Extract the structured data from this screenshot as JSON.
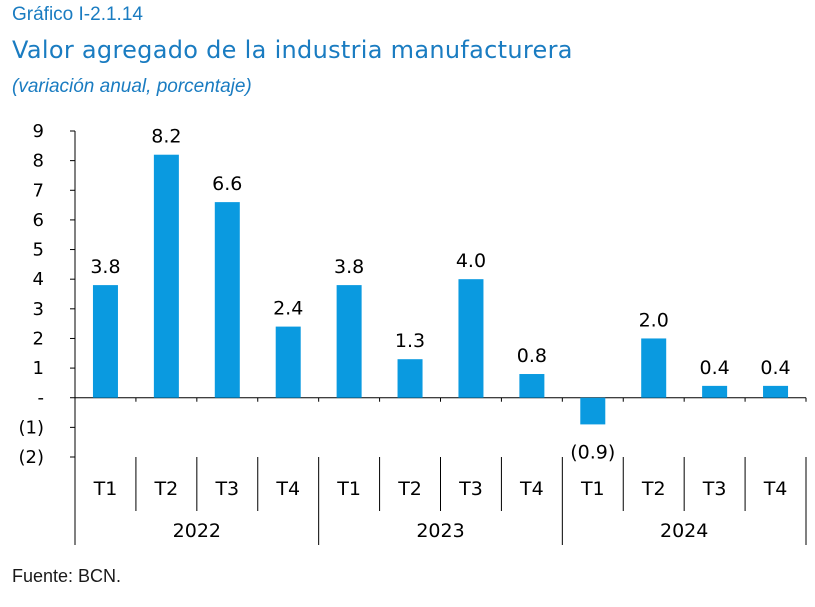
{
  "header": {
    "label": "Gráfico I-2.1.14",
    "title": "Valor agregado de la industria manufacturera",
    "subtitle": "(variación anual, porcentaje)"
  },
  "source": "Fuente: BCN.",
  "colors": {
    "bar": "#0a9ae0",
    "title": "#1a7cc1",
    "axis": "#000000"
  },
  "chart_data": {
    "type": "bar",
    "categories": [
      "T1",
      "T2",
      "T3",
      "T4",
      "T1",
      "T2",
      "T3",
      "T4",
      "T1",
      "T2",
      "T3",
      "T4"
    ],
    "groups": [
      {
        "label": "2022",
        "count": 4
      },
      {
        "label": "2023",
        "count": 4
      },
      {
        "label": "2024",
        "count": 4
      }
    ],
    "values": [
      3.8,
      8.2,
      6.6,
      2.4,
      3.8,
      1.3,
      4.0,
      0.8,
      -0.9,
      2.0,
      0.4,
      0.4
    ],
    "value_labels": [
      "3.8",
      "8.2",
      "6.6",
      "2.4",
      "3.8",
      "1.3",
      "4.0",
      "0.8",
      "(0.9)",
      "2.0",
      "0.4",
      "0.4"
    ],
    "yticks": [
      -2,
      -1,
      0,
      1,
      2,
      3,
      4,
      5,
      6,
      7,
      8,
      9
    ],
    "ytick_labels": [
      "(2)",
      "(1)",
      "-",
      "1",
      "2",
      "3",
      "4",
      "5",
      "6",
      "7",
      "8",
      "9"
    ],
    "ylim": [
      -2,
      9
    ],
    "grid": false,
    "legend": "none"
  }
}
